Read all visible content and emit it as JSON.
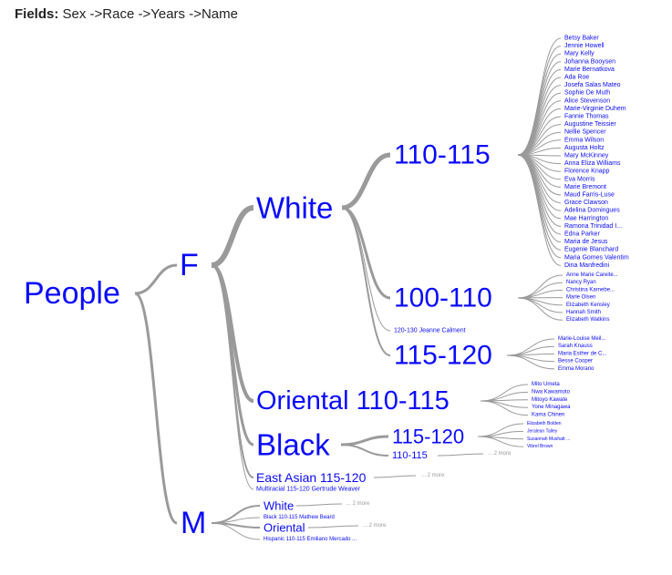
{
  "header": {
    "label": "Fields:",
    "fields": "Sex ->Race ->Years ->Name"
  },
  "colors": {
    "node_text": "#0a0aff",
    "link": "#9a9a9a",
    "more_text": "#999999"
  },
  "tree": {
    "name": "People",
    "children": [
      {
        "name": "F",
        "children": [
          {
            "name": "White",
            "children": [
              {
                "name": "110-115",
                "leaves": [
                  "Betsy Baker",
                  "Jennie Howell",
                  "Mary Kelly",
                  "Johanna Booysen",
                  "Marie Bernatkova",
                  "Ada Roe",
                  "Josefa Salas Mateo",
                  "Sophie De Muth",
                  "Alice Stevenson",
                  "Marie-Virginie Duhem",
                  "Fannie Thomas",
                  "Augustine Teissier",
                  "Nellie Spencer",
                  "Emma Wilson",
                  "Augusta Holtz",
                  "Mary McKinney",
                  "Anna Eliza Williams",
                  "Florence Knapp",
                  "Eva Morris",
                  "Marie Bremont",
                  "Maud Farris-Luse",
                  "Grace Clawson",
                  "Adelina Domingues",
                  "Mae Harrington",
                  "Ramona Trinidad I...",
                  "Edna Parker",
                  "Maria de Jesus",
                  "Eugenie Blanchard",
                  "Maria Gomes Valentim",
                  "Dina Manfredini"
                ]
              },
              {
                "name": "100-110",
                "leaves": [
                  "Anne Marie Careite...",
                  "Nancy Ryan",
                  "Christina Karnebe...",
                  "Marie Olsen",
                  "Elizabeth Kensley",
                  "Hannah Smith",
                  "Elizabeth Watkins"
                ]
              },
              {
                "name": "120-130",
                "inline": "Jeanne Calment"
              },
              {
                "name": "115-120",
                "leaves": [
                  "Marie-Louise Meil...",
                  "Sarah Knauss",
                  "Maria Esther de C...",
                  "Besse Cooper",
                  "Emma Morano"
                ]
              }
            ]
          },
          {
            "name": "Oriental 110-115",
            "leaves": [
              "Mito Umeta",
              "Nwa Kawamoto",
              "Mitoyo Kawate",
              "Yone Minagawa",
              "Kama Chinen"
            ]
          },
          {
            "name": "Black",
            "children": [
              {
                "name": "115-120",
                "leaves": [
                  "Elizabeth Bolden",
                  "Jeralean Talley",
                  "Susannah Mushatt ...",
                  "Vibrel Brown"
                ]
              },
              {
                "name": "110-115",
                "more": "... 2 more"
              }
            ]
          },
          {
            "name": "East Asian 115-120",
            "more": "... 2 more"
          },
          {
            "name": "Multiracial",
            "inline": "115-120  Gertrude Weaver"
          }
        ]
      },
      {
        "name": "M",
        "children": [
          {
            "name": "White",
            "more": "... 2 more"
          },
          {
            "name": "Black",
            "inline": "110-115  Mathew Beard"
          },
          {
            "name": "Oriental",
            "more": "... 2 more"
          },
          {
            "name": "Hispanic",
            "inline": "110-115  Emiliano Mercado ..."
          }
        ]
      }
    ]
  }
}
